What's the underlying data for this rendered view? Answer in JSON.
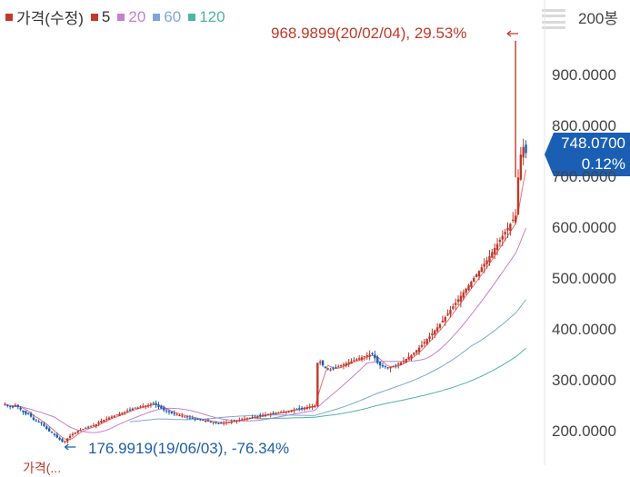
{
  "legend": {
    "price_label": "가격(수정)",
    "ma5_label": "5",
    "ma20_label": "20",
    "ma60_label": "60",
    "ma120_label": "120",
    "colors": {
      "price": "#c0392b",
      "ma5": "#c0392b",
      "ma20": "#c77ed3",
      "ma60": "#7da7d9",
      "ma120": "#4fb3a6"
    }
  },
  "period_label": "200봉",
  "menu_icon": "hamburger-menu-icon",
  "y_axis": {
    "ticks": [
      "900.0000",
      "800.0000",
      "700.0000",
      "600.0000",
      "500.0000",
      "400.0000",
      "300.0000",
      "200.0000"
    ],
    "tick_values": [
      900,
      800,
      700,
      600,
      500,
      400,
      300,
      200
    ],
    "min": 155,
    "max": 1010
  },
  "current_price": {
    "value": "748.0700",
    "change": "0.12%",
    "color": "#1a5fb4"
  },
  "annotations": {
    "high": "968.9899(20/02/04), 29.53%",
    "low": "176.9919(19/06/03), -76.34%"
  },
  "bottom_text": "가격(...",
  "chart_data": {
    "type": "candlestick",
    "bars": 200,
    "ylim": [
      155,
      1010
    ],
    "close": [
      254,
      250,
      249,
      247,
      252,
      248,
      243,
      238,
      234,
      235,
      229,
      223,
      221,
      219,
      216,
      211,
      205,
      200,
      197,
      193,
      188,
      184,
      180,
      181,
      186,
      191,
      195,
      198,
      201,
      203,
      205,
      207,
      209,
      210,
      212,
      214,
      218,
      221,
      223,
      225,
      227,
      229,
      231,
      233,
      235,
      237,
      239,
      241,
      243,
      245,
      246,
      247,
      249,
      250,
      251,
      252,
      254,
      255,
      252,
      248,
      245,
      242,
      240,
      238,
      236,
      234,
      233,
      232,
      231,
      229,
      228,
      227,
      226,
      225,
      224,
      223,
      222,
      221,
      220,
      219,
      218,
      217,
      216,
      216,
      217,
      218,
      219,
      220,
      221,
      222,
      223,
      224,
      225,
      226,
      227,
      228,
      229,
      230,
      231,
      232,
      233,
      234,
      235,
      236,
      236,
      237,
      238,
      239,
      240,
      241,
      242,
      243,
      244,
      245,
      246,
      247,
      248,
      249,
      250,
      251,
      335,
      337,
      330,
      325,
      323,
      322,
      324,
      326,
      328,
      330,
      332,
      334,
      336,
      338,
      340,
      342,
      344,
      346,
      348,
      350,
      351,
      352,
      344,
      335,
      330,
      328,
      327,
      326,
      327,
      328,
      330,
      333,
      336,
      339,
      343,
      347,
      350,
      355,
      360,
      365,
      370,
      376,
      382,
      387,
      393,
      399,
      405,
      411,
      418,
      425,
      432,
      439,
      446,
      453,
      460,
      467,
      474,
      481,
      488,
      495,
      502,
      509,
      516,
      523,
      530,
      537,
      545,
      553,
      561,
      569,
      577,
      585,
      593,
      601,
      609,
      617,
      625,
      700,
      745,
      760,
      748
    ]
  }
}
